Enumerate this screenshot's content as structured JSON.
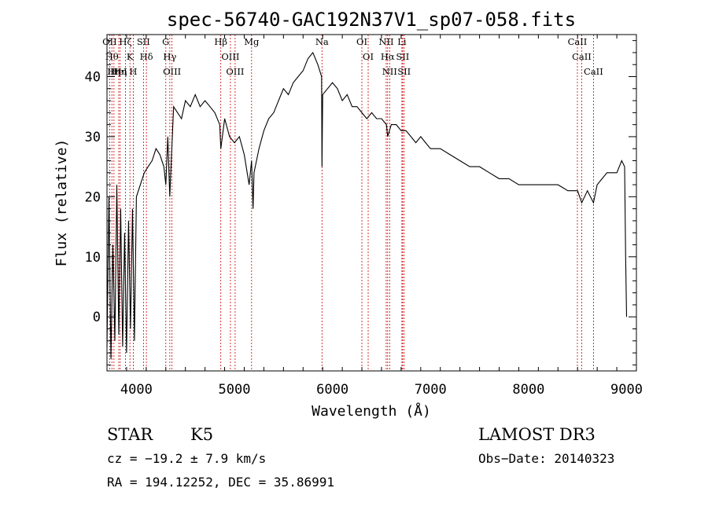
{
  "chart_data": {
    "type": "line",
    "title": "spec-56740-GAC192N37V1_sp07-058.fits",
    "xlabel": "Wavelength (Å)",
    "ylabel": "Flux (relative)",
    "xlim": [
      3700,
      9100
    ],
    "ylim": [
      -9,
      47
    ],
    "xticks": [
      4000,
      5000,
      6000,
      7000,
      8000,
      9000
    ],
    "xtick_labels": [
      "4000",
      "5000",
      "6000",
      "7000",
      "8000",
      "9000"
    ],
    "yticks": [
      0,
      10,
      20,
      30,
      40
    ],
    "ytick_labels": [
      "0",
      "10",
      "20",
      "30",
      "40"
    ],
    "series": [
      {
        "name": "spectrum",
        "x": [
          3700,
          3720,
          3740,
          3760,
          3780,
          3800,
          3820,
          3840,
          3860,
          3880,
          3900,
          3920,
          3940,
          3960,
          3980,
          4000,
          4040,
          4080,
          4120,
          4160,
          4200,
          4240,
          4280,
          4300,
          4320,
          4340,
          4380,
          4420,
          4460,
          4500,
          4550,
          4600,
          4650,
          4700,
          4750,
          4800,
          4850,
          4861,
          4900,
          4950,
          5000,
          5050,
          5100,
          5150,
          5175,
          5190,
          5200,
          5250,
          5300,
          5350,
          5400,
          5450,
          5500,
          5550,
          5600,
          5650,
          5700,
          5750,
          5800,
          5850,
          5889,
          5893,
          5900,
          5950,
          6000,
          6050,
          6100,
          6150,
          6200,
          6250,
          6300,
          6350,
          6400,
          6450,
          6500,
          6550,
          6563,
          6600,
          6650,
          6700,
          6750,
          6800,
          6850,
          6900,
          6950,
          7000,
          7100,
          7200,
          7300,
          7400,
          7500,
          7600,
          7700,
          7800,
          7900,
          8000,
          8100,
          8200,
          8300,
          8400,
          8500,
          8542,
          8600,
          8662,
          8700,
          8750,
          8800,
          8850,
          8900,
          8950,
          8980,
          8990,
          9000
        ],
        "values": [
          -5,
          20,
          -7,
          12,
          -4,
          22,
          -3,
          18,
          -5,
          14,
          -6,
          16,
          -2,
          18,
          -4,
          20,
          22,
          24,
          25,
          26,
          28,
          27,
          25,
          22,
          30,
          20,
          35,
          34,
          33,
          36,
          35,
          37,
          35,
          36,
          35,
          34,
          32,
          28,
          33,
          30,
          29,
          30,
          27,
          22,
          26,
          18,
          24,
          28,
          31,
          33,
          34,
          36,
          38,
          37,
          39,
          40,
          41,
          43,
          44,
          42,
          40,
          25,
          37,
          38,
          39,
          38,
          36,
          37,
          35,
          35,
          34,
          33,
          34,
          33,
          33,
          32,
          30,
          32,
          32,
          31,
          31,
          30,
          29,
          30,
          29,
          28,
          28,
          27,
          26,
          25,
          25,
          24,
          23,
          23,
          22,
          22,
          22,
          22,
          22,
          21,
          21,
          19,
          21,
          19,
          22,
          23,
          24,
          24,
          24,
          26,
          25,
          10,
          0
        ]
      }
    ],
    "line_markers": [
      {
        "wavelength": 3727,
        "label": "OII"
      },
      {
        "wavelength": 3750,
        "label": "Hθ"
      },
      {
        "wavelength": 3771,
        "label": "Hη"
      },
      {
        "wavelength": 3820,
        "label": "HeI"
      },
      {
        "wavelength": 3835,
        "label": "Hη"
      },
      {
        "wavelength": 3889,
        "label": "Hζ"
      },
      {
        "wavelength": 3934,
        "label": "K"
      },
      {
        "wavelength": 3968,
        "label": "H"
      },
      {
        "wavelength": 4072,
        "label": "SII"
      },
      {
        "wavelength": 4102,
        "label": "Hδ"
      },
      {
        "wavelength": 4300,
        "label": "G"
      },
      {
        "wavelength": 4341,
        "label": "Hγ"
      },
      {
        "wavelength": 4363,
        "label": "OIII"
      },
      {
        "wavelength": 4861,
        "label": "Hβ"
      },
      {
        "wavelength": 4959,
        "label": "OIII"
      },
      {
        "wavelength": 5007,
        "label": "OIII"
      },
      {
        "wavelength": 5175,
        "label": "Mg"
      },
      {
        "wavelength": 5893,
        "label": "Na"
      },
      {
        "wavelength": 6300,
        "label": "OI"
      },
      {
        "wavelength": 6364,
        "label": "OI"
      },
      {
        "wavelength": 6548,
        "label": "NII"
      },
      {
        "wavelength": 6563,
        "label": "Hα"
      },
      {
        "wavelength": 6583,
        "label": "NII"
      },
      {
        "wavelength": 6708,
        "label": "Li"
      },
      {
        "wavelength": 6716,
        "label": "SII"
      },
      {
        "wavelength": 6731,
        "label": "SII"
      },
      {
        "wavelength": 8498,
        "label": "CaII"
      },
      {
        "wavelength": 8542,
        "label": "CaII"
      },
      {
        "wavelength": 8662,
        "label": "CaII"
      }
    ],
    "grid": false,
    "legend": "none"
  },
  "info": {
    "object_class": "STAR",
    "subclass": "K5",
    "survey": "LAMOST DR3",
    "redshift": "cz = −19.2 ± 7.9 km/s",
    "obs_date": "Obs−Date: 20140323",
    "coordinates": "RA = 194.12252, DEC =  35.86991"
  },
  "colors": {
    "spectrum": "#000000",
    "marker_line": "#cc0000",
    "axis": "#000000",
    "background": "#ffffff"
  }
}
